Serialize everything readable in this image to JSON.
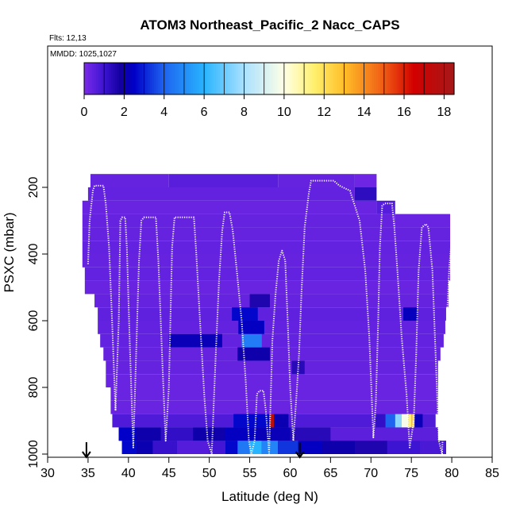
{
  "chart_data": {
    "type": "heatmap",
    "title": "ATOM3 Northeast_Pacific_2 Nacc_CAPS",
    "flights_note": "Flts: 12,13",
    "date_note": "MMDD: 1025,1027",
    "xlabel": "Latitude (deg N)",
    "ylabel": "PSXC (mbar)",
    "xlim": [
      30,
      85
    ],
    "ylim": [
      1000,
      0
    ],
    "xticks": [
      "30",
      "35",
      "40",
      "45",
      "50",
      "55",
      "60",
      "65",
      "70",
      "75",
      "80",
      "85"
    ],
    "yticks": [
      "200",
      "400",
      "600",
      "800",
      "1000"
    ],
    "colorbar": {
      "min": 0,
      "max": 18.5,
      "ticks": [
        "0",
        "2",
        "4",
        "6",
        "8",
        "10",
        "12",
        "14",
        "16",
        "18"
      ]
    },
    "colors": {
      "background": "#7b2be8",
      "flight_track": "#ffffff",
      "arrow": "#000000"
    },
    "arrows_latitude": [
      34.8,
      61.2
    ],
    "panels": [
      {
        "lat": [
          35.3,
          45.0
        ],
        "p": [
          160,
          200
        ],
        "v": 0.35
      },
      {
        "lat": [
          45.0,
          58.5
        ],
        "p": [
          160,
          200
        ],
        "v": 0.55
      },
      {
        "lat": [
          58.5,
          68.0
        ],
        "p": [
          160,
          200
        ],
        "v": 0.35
      },
      {
        "lat": [
          68.0,
          70.7
        ],
        "p": [
          160,
          200
        ],
        "v": 0.2
      },
      {
        "lat": [
          68.0,
          70.7
        ],
        "p": [
          200,
          240
        ],
        "v": 1.3
      },
      {
        "lat": [
          35.0,
          68.0
        ],
        "p": [
          200,
          240
        ],
        "v": 0.4
      },
      {
        "lat": [
          34.3,
          70.7
        ],
        "p": [
          240,
          280
        ],
        "v": 0.3
      },
      {
        "lat": [
          70.7,
          73.0
        ],
        "p": [
          240,
          280
        ],
        "v": 0.6
      },
      {
        "lat": [
          34.3,
          73.0
        ],
        "p": [
          280,
          320
        ],
        "v": 0.35
      },
      {
        "lat": [
          73.0,
          79.8
        ],
        "p": [
          280,
          320
        ],
        "v": 0.3
      },
      {
        "lat": [
          34.3,
          79.8
        ],
        "p": [
          320,
          360
        ],
        "v": 0.35
      },
      {
        "lat": [
          34.3,
          79.8
        ],
        "p": [
          360,
          400
        ],
        "v": 0.4
      },
      {
        "lat": [
          34.3,
          79.8
        ],
        "p": [
          400,
          440
        ],
        "v": 0.35
      },
      {
        "lat": [
          34.6,
          79.8
        ],
        "p": [
          440,
          480
        ],
        "v": 0.4
      },
      {
        "lat": [
          34.6,
          79.6
        ],
        "p": [
          480,
          520
        ],
        "v": 0.3
      },
      {
        "lat": [
          55.0,
          57.5
        ],
        "p": [
          520,
          560
        ],
        "v": 1.6
      },
      {
        "lat": [
          35.8,
          79.6
        ],
        "p": [
          520,
          560
        ],
        "v": 0.35
      },
      {
        "lat": [
          52.8,
          56.0
        ],
        "p": [
          560,
          600
        ],
        "v": 2.6
      },
      {
        "lat": [
          74.0,
          75.8
        ],
        "p": [
          560,
          600
        ],
        "v": 2.3
      },
      {
        "lat": [
          36.2,
          79.3
        ],
        "p": [
          560,
          600
        ],
        "v": 0.45
      },
      {
        "lat": [
          53.6,
          56.8
        ],
        "p": [
          600,
          640
        ],
        "v": 2.4
      },
      {
        "lat": [
          36.2,
          79.2
        ],
        "p": [
          600,
          640
        ],
        "v": 0.4
      },
      {
        "lat": [
          45.0,
          51.6
        ],
        "p": [
          640,
          680
        ],
        "v": 2.2
      },
      {
        "lat": [
          54.0,
          56.5
        ],
        "p": [
          640,
          680
        ],
        "v": 4.6
      },
      {
        "lat": [
          36.5,
          79.0
        ],
        "p": [
          640,
          680
        ],
        "v": 0.4
      },
      {
        "lat": [
          53.5,
          57.5
        ],
        "p": [
          680,
          720
        ],
        "v": 2.0
      },
      {
        "lat": [
          36.9,
          78.6
        ],
        "p": [
          680,
          720
        ],
        "v": 0.35
      },
      {
        "lat": [
          60.2,
          61.8
        ],
        "p": [
          720,
          760
        ],
        "v": 1.4
      },
      {
        "lat": [
          37.2,
          78.3
        ],
        "p": [
          720,
          760
        ],
        "v": 0.35
      },
      {
        "lat": [
          37.2,
          78.3
        ],
        "p": [
          760,
          800
        ],
        "v": 0.3
      },
      {
        "lat": [
          37.8,
          78.3
        ],
        "p": [
          800,
          840
        ],
        "v": 0.3
      },
      {
        "lat": [
          37.8,
          78.3
        ],
        "p": [
          840,
          880
        ],
        "v": 0.3
      },
      {
        "lat": [
          38.0,
          78.0
        ],
        "p": [
          880,
          920
        ],
        "v": 0.7
      },
      {
        "lat": [
          38.8,
          78.3
        ],
        "p": [
          920,
          960
        ],
        "v": 1.5
      },
      {
        "lat": [
          39.2,
          79.3
        ],
        "p": [
          960,
          1000
        ],
        "v": 2.0
      }
    ],
    "cells_920_880": [
      {
        "lat": [
          53.0,
          57.4
        ],
        "v": 2.6
      },
      {
        "lat": [
          57.4,
          58.0
        ],
        "v": 17.5
      },
      {
        "lat": [
          58.0,
          59.8
        ],
        "v": 2.1
      },
      {
        "lat": [
          70.6,
          71.8
        ],
        "v": 1.2
      },
      {
        "lat": [
          71.8,
          73.0
        ],
        "v": 4.0
      },
      {
        "lat": [
          73.0,
          73.8
        ],
        "v": 7.5
      },
      {
        "lat": [
          73.8,
          74.6
        ],
        "v": 9.8
      },
      {
        "lat": [
          74.6,
          75.0
        ],
        "v": 11.5
      },
      {
        "lat": [
          75.0,
          75.4
        ],
        "v": 12.5
      },
      {
        "lat": [
          75.4,
          76.4
        ],
        "v": 2.2
      }
    ],
    "cells_1000_960": [
      {
        "lat": [
          39.2,
          41.0
        ],
        "v": 2.6
      },
      {
        "lat": [
          41.0,
          43.0
        ],
        "v": 2.1
      },
      {
        "lat": [
          43.0,
          46.0
        ],
        "v": 1.1
      },
      {
        "lat": [
          46.0,
          50.0
        ],
        "v": 0.6
      },
      {
        "lat": [
          50.0,
          52.0
        ],
        "v": 0.9
      },
      {
        "lat": [
          52.0,
          53.5
        ],
        "v": 2.6
      },
      {
        "lat": [
          53.5,
          55.0
        ],
        "v": 4.5
      },
      {
        "lat": [
          55.0,
          56.5
        ],
        "v": 6.0
      },
      {
        "lat": [
          56.5,
          58.5
        ],
        "v": 4.8
      },
      {
        "lat": [
          58.5,
          61.0
        ],
        "v": 3.3
      },
      {
        "lat": [
          61.0,
          64.0
        ],
        "v": 2.4
      },
      {
        "lat": [
          64.0,
          68.0
        ],
        "v": 2.0
      },
      {
        "lat": [
          68.0,
          72.0
        ],
        "v": 1.6
      },
      {
        "lat": [
          72.0,
          76.0
        ],
        "v": 1.0
      },
      {
        "lat": [
          76.0,
          79.3
        ],
        "v": 0.8
      }
    ],
    "cells_960_920": [
      {
        "lat": [
          38.8,
          41.0
        ],
        "v": 2.5
      },
      {
        "lat": [
          41.0,
          44.0
        ],
        "v": 2.0
      },
      {
        "lat": [
          44.0,
          48.0
        ],
        "v": 1.2
      },
      {
        "lat": [
          48.0,
          52.0
        ],
        "v": 2.0
      },
      {
        "lat": [
          52.0,
          56.0
        ],
        "v": 2.4
      },
      {
        "lat": [
          56.0,
          60.0
        ],
        "v": 2.2
      },
      {
        "lat": [
          60.0,
          65.0
        ],
        "v": 1.4
      },
      {
        "lat": [
          65.0,
          78.3
        ],
        "v": 0.5
      }
    ],
    "flight_track": [
      [
        35.0,
        430
      ],
      [
        35.2,
        300
      ],
      [
        35.6,
        210
      ],
      [
        35.8,
        195
      ],
      [
        36.9,
        195
      ],
      [
        37.2,
        250
      ],
      [
        37.6,
        380
      ],
      [
        38.0,
        620
      ],
      [
        38.4,
        870
      ],
      [
        38.8,
        600
      ],
      [
        39.0,
        300
      ],
      [
        39.2,
        290
      ],
      [
        39.6,
        290
      ],
      [
        39.8,
        380
      ],
      [
        40.2,
        700
      ],
      [
        40.6,
        980
      ],
      [
        41.3,
        420
      ],
      [
        41.6,
        300
      ],
      [
        41.9,
        290
      ],
      [
        43.4,
        290
      ],
      [
        43.7,
        420
      ],
      [
        44.2,
        730
      ],
      [
        44.6,
        960
      ],
      [
        45.0,
        800
      ],
      [
        45.4,
        380
      ],
      [
        45.7,
        290
      ],
      [
        48.1,
        290
      ],
      [
        48.4,
        400
      ],
      [
        48.9,
        620
      ],
      [
        49.4,
        830
      ],
      [
        49.8,
        960
      ],
      [
        50.3,
        1000
      ],
      [
        50.8,
        700
      ],
      [
        51.2,
        480
      ],
      [
        51.6,
        330
      ],
      [
        51.9,
        275
      ],
      [
        52.5,
        275
      ],
      [
        52.9,
        330
      ],
      [
        53.4,
        450
      ],
      [
        54.0,
        600
      ],
      [
        54.5,
        780
      ],
      [
        54.9,
        960
      ],
      [
        55.2,
        1000
      ],
      [
        55.6,
        960
      ],
      [
        55.9,
        820
      ],
      [
        56.2,
        810
      ],
      [
        56.7,
        810
      ],
      [
        57.0,
        870
      ],
      [
        57.4,
        1000
      ],
      [
        57.8,
        660
      ],
      [
        58.2,
        520
      ],
      [
        58.6,
        420
      ],
      [
        59.0,
        390
      ],
      [
        59.4,
        420
      ],
      [
        59.7,
        600
      ],
      [
        60.0,
        800
      ],
      [
        60.4,
        960
      ],
      [
        60.8,
        820
      ],
      [
        61.1,
        700
      ],
      [
        61.4,
        520
      ],
      [
        61.8,
        320
      ],
      [
        62.3,
        220
      ],
      [
        62.6,
        180
      ],
      [
        65.4,
        180
      ],
      [
        66.1,
        195
      ],
      [
        67.4,
        210
      ],
      [
        68.6,
        300
      ],
      [
        69.3,
        450
      ],
      [
        69.8,
        650
      ],
      [
        70.3,
        950
      ],
      [
        70.6,
        850
      ],
      [
        70.9,
        600
      ],
      [
        71.1,
        380
      ],
      [
        71.4,
        255
      ],
      [
        71.7,
        248
      ],
      [
        72.6,
        248
      ],
      [
        72.9,
        320
      ],
      [
        73.3,
        460
      ],
      [
        73.8,
        650
      ],
      [
        74.4,
        820
      ],
      [
        74.8,
        980
      ],
      [
        75.3,
        900
      ],
      [
        75.6,
        700
      ],
      [
        75.9,
        450
      ],
      [
        76.3,
        320
      ],
      [
        76.8,
        310
      ],
      [
        77.1,
        320
      ],
      [
        77.6,
        450
      ],
      [
        78.0,
        700
      ],
      [
        78.4,
        960
      ],
      [
        78.8,
        1000
      ],
      [
        79.2,
        700
      ],
      [
        79.7,
        440
      ],
      [
        80.1,
        320
      ]
    ]
  }
}
